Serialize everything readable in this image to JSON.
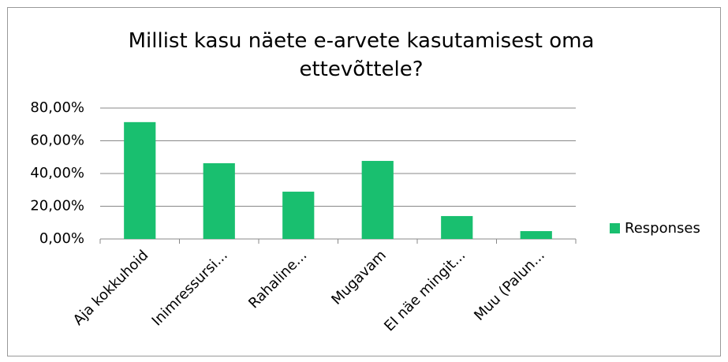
{
  "chart_data": {
    "type": "bar",
    "title": "Millist kasu näete e-arvete kasutamisest oma ettevõttele?",
    "categories": [
      "Aja kokkuhoid",
      "Inimressursi...",
      "Rahaline...",
      "Mugavam",
      "EI näe mingit...",
      "Muu (Palun..."
    ],
    "series": [
      {
        "name": "Responses",
        "color": "#19bf6f",
        "values": [
          71.4,
          46.3,
          28.9,
          47.7,
          14.0,
          4.8
        ]
      }
    ],
    "ylim": [
      0,
      80
    ],
    "yticks": [
      {
        "value": 0,
        "label": "0,00%"
      },
      {
        "value": 20,
        "label": "20,00%"
      },
      {
        "value": 40,
        "label": "40,00%"
      },
      {
        "value": 60,
        "label": "60,00%"
      },
      {
        "value": 80,
        "label": "80,00%"
      }
    ],
    "grid": true,
    "legend": "right"
  }
}
